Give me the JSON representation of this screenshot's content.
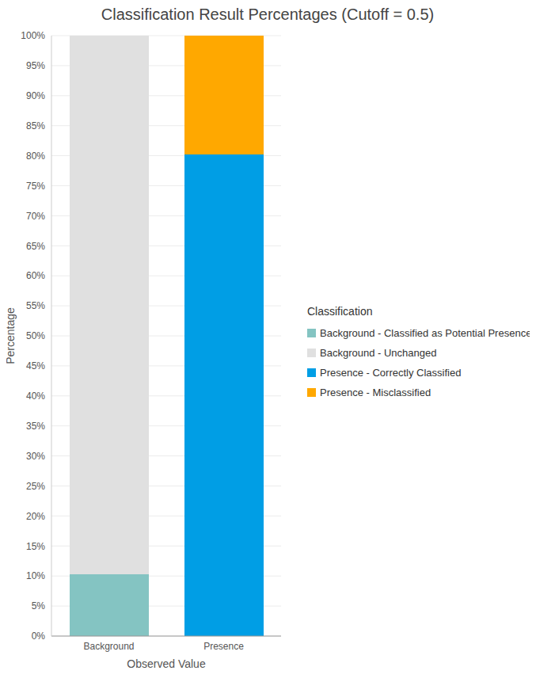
{
  "chart_data": {
    "type": "bar",
    "title": "Classification Result Percentages (Cutoff = 0.5)",
    "x_label": "Observed Value",
    "y_label": "Percentage",
    "legend_title": "Classification",
    "categories": [
      "Background",
      "Presence"
    ],
    "series": [
      {
        "name": "Background - Classified as Potential Presence",
        "color": "#84c4c2",
        "values": [
          10.3,
          null
        ]
      },
      {
        "name": "Background - Unchanged",
        "color": "#e0e0e0",
        "values": [
          89.7,
          null
        ]
      },
      {
        "name": "Presence - Correctly Classified",
        "color": "#009ee5",
        "values": [
          null,
          80.2
        ]
      },
      {
        "name": "Presence - Misclassified",
        "color": "#ffa800",
        "values": [
          null,
          19.8
        ]
      }
    ],
    "stacked": true,
    "ylim": [
      0,
      100
    ],
    "yticks": [
      {
        "value": 0,
        "label": "0%"
      },
      {
        "value": 5,
        "label": "5%"
      },
      {
        "value": 10,
        "label": "10%"
      },
      {
        "value": 15,
        "label": "15%"
      },
      {
        "value": 20,
        "label": "20%"
      },
      {
        "value": 25,
        "label": "25%"
      },
      {
        "value": 30,
        "label": "30%"
      },
      {
        "value": 35,
        "label": "35%"
      },
      {
        "value": 40,
        "label": "40%"
      },
      {
        "value": 45,
        "label": "45%"
      },
      {
        "value": 50,
        "label": "50%"
      },
      {
        "value": 55,
        "label": "55%"
      },
      {
        "value": 60,
        "label": "60%"
      },
      {
        "value": 65,
        "label": "65%"
      },
      {
        "value": 70,
        "label": "70%"
      },
      {
        "value": 75,
        "label": "75%"
      },
      {
        "value": 80,
        "label": "80%"
      },
      {
        "value": 85,
        "label": "85%"
      },
      {
        "value": 90,
        "label": "90%"
      },
      {
        "value": 95,
        "label": "95%"
      },
      {
        "value": 100,
        "label": "100%"
      }
    ],
    "grid": true,
    "legend": "right"
  }
}
